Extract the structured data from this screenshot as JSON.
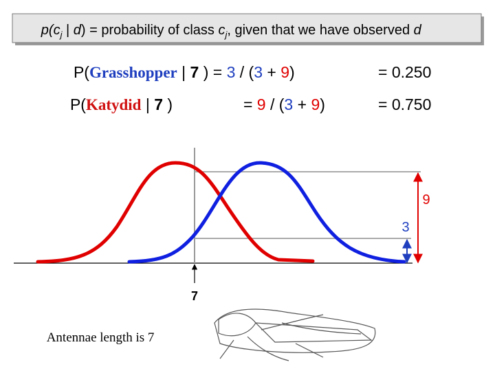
{
  "header": {
    "parts": [
      "p(",
      "c",
      "j",
      " | ",
      "d",
      ") = probability of class ",
      "c",
      "j",
      ", given that we have observed ",
      "d"
    ]
  },
  "equations": [
    {
      "parts": [
        "P(",
        "Grasshopper",
        " | ",
        "7",
        " ) = ",
        "3",
        " / (",
        "3",
        " + ",
        "9",
        ")"
      ],
      "result": "= 0.250"
    },
    {
      "parts": [
        "P(",
        "Katydid",
        " | ",
        "7",
        " )"
      ],
      "ratio": [
        "= ",
        "9",
        " / (",
        "3",
        " + ",
        "9",
        ")"
      ],
      "result": "= 0.750"
    }
  ],
  "plot": {
    "label_high": "9",
    "label_low": "3",
    "x_label": "7"
  },
  "caption": {
    "parts": [
      "Antennae length is ",
      "7"
    ]
  }
}
